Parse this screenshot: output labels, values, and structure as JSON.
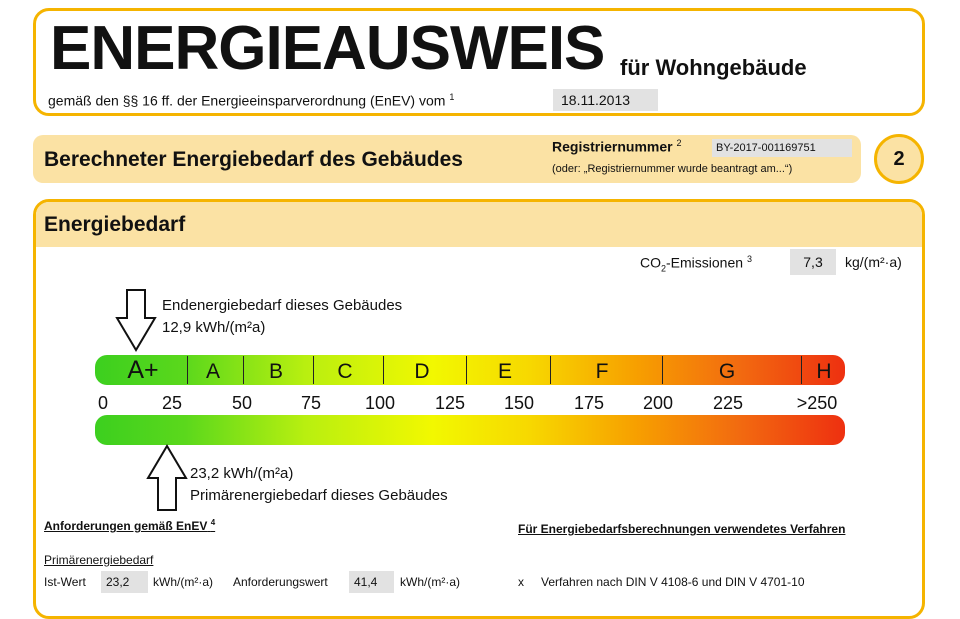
{
  "header": {
    "title": "ENERGIEAUSWEIS",
    "subtitle": "für Wohngebäude",
    "basis": "gemäß den §§ 16 ff. der Energieeinsparverordnung (EnEV) vom",
    "basis_sup": "1",
    "date": "18.11.2013"
  },
  "section": {
    "title": "Berechneter Energiebedarf des Gebäudes",
    "reg_label": "Registriernummer",
    "reg_sup": "2",
    "reg_number": "BY-2017-001169751",
    "reg_note": "(oder: „Registriernummer wurde beantragt am...“)",
    "page_number": "2"
  },
  "energy": {
    "title": "Energiebedarf",
    "co2_label": "CO",
    "co2_sub": "2",
    "co2_rest": "-Emissionen",
    "co2_sup": "3",
    "co2_value": "7,3",
    "co2_unit": "kg/(m²·a)",
    "end_label": "Endenergiebedarf dieses Gebäudes",
    "end_value": "12,9 kWh/(m²a)",
    "end_numeric": 12.9,
    "primary_value": "23,2 kWh/(m²a)",
    "primary_label": "Primärenergiebedarf dieses Gebäudes",
    "primary_numeric": 23.2,
    "classes": [
      "A+",
      "A",
      "B",
      "C",
      "D",
      "E",
      "F",
      "G",
      "H"
    ],
    "scale": [
      "0",
      "25",
      "50",
      "75",
      "100",
      "125",
      "150",
      "175",
      "200",
      "225",
      ">250"
    ],
    "gradient_colors": [
      "#3ccf1f",
      "#f2f800",
      "#f7a000",
      "#ee3010"
    ]
  },
  "requirements": {
    "title": "Anforderungen gemäß EnEV",
    "title_sup": "4",
    "sub": "Primärenergiebedarf",
    "ist_label": "Ist-Wert",
    "ist_value": "23,2",
    "unit": "kWh/(m²·a)",
    "anf_label": "Anforderungswert",
    "anf_value": "41,4"
  },
  "method": {
    "title": "Für Energiebedarfsberechnungen verwendetes Verfahren",
    "mark": "x",
    "text": "Verfahren nach DIN V 4108-6 und DIN V 4701-10"
  }
}
